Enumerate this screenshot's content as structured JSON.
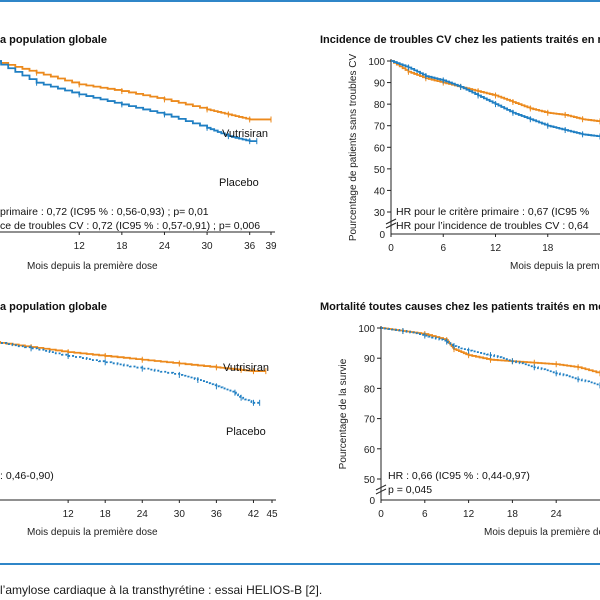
{
  "colors": {
    "vutrisiran": "#ec8a1d",
    "placebo": "#1f7fc3",
    "axis": "#222222",
    "rule": "#2f86c8"
  },
  "caption": "l’amylose cardiaque à la transthyrétine : essai HELIOS-B [2].",
  "chart_data": [
    {
      "type": "line",
      "title": "a population globale",
      "xlabel": "Mois depuis la première dose",
      "ylabel": "",
      "xlim": [
        0,
        39
      ],
      "ylim": [
        50,
        100
      ],
      "x_ticks": [
        "12",
        "18",
        "24",
        "30",
        "36",
        "39"
      ],
      "y_ticks": [],
      "annotations": [
        "primaire : 0,72 (IC95 % : 0,56-0,93) ; p= 0,01",
        "ce de troubles CV : 0,72 (IC95 % : 0,57-0,91) ; p= 0,006"
      ],
      "series": [
        {
          "name": "Vutrisiran",
          "x": [
            0,
            6,
            12,
            18,
            24,
            30,
            33,
            36,
            39
          ],
          "y": [
            100,
            96.5,
            93,
            91,
            88.5,
            85.5,
            84,
            82.5,
            82.5
          ]
        },
        {
          "name": "Placebo",
          "x": [
            0,
            6,
            12,
            18,
            24,
            30,
            33,
            36,
            37
          ],
          "y": [
            100,
            93.5,
            90,
            87,
            84,
            80,
            77.5,
            76,
            76
          ]
        }
      ]
    },
    {
      "type": "line",
      "title": "Incidence de troubles CV chez les patients traités en m",
      "xlabel": "Mois depuis la première dose",
      "ylabel": "Pourcentage de patients sans troubles CV",
      "xlim": [
        0,
        24
      ],
      "ylim": [
        0,
        100
      ],
      "x_ticks": [
        "0",
        "6",
        "12",
        "18"
      ],
      "y_ticks": [
        "30",
        "40",
        "50",
        "60",
        "70",
        "80",
        "90",
        "100"
      ],
      "annotations": [
        "HR pour le critère primaire : 0,67 (IC95 %",
        "HR pour l’incidence de troubles CV : 0,64"
      ],
      "series": [
        {
          "name": "",
          "x": [
            0,
            2,
            4,
            6,
            8,
            10,
            12,
            14,
            16,
            18,
            20,
            22,
            24
          ],
          "y": [
            100,
            95,
            92,
            90,
            88,
            86,
            84,
            81,
            78,
            76,
            75,
            73,
            72
          ]
        },
        {
          "name": "",
          "x": [
            0,
            2,
            4,
            6,
            8,
            10,
            12,
            14,
            16,
            18,
            20,
            22,
            24
          ],
          "y": [
            100,
            97,
            93,
            91,
            88,
            84,
            80,
            76,
            73,
            70,
            68,
            66,
            65
          ]
        }
      ]
    },
    {
      "type": "line",
      "title": "a population globale",
      "xlabel": "Mois depuis la première dose",
      "ylabel": "",
      "xlim": [
        0,
        45
      ],
      "ylim": [
        40,
        100
      ],
      "x_ticks": [
        "12",
        "18",
        "24",
        "30",
        "36",
        "42",
        "45"
      ],
      "y_ticks": [],
      "annotations": [
        ": 0,46-0,90)"
      ],
      "series": [
        {
          "name": "Vutrisiran",
          "x": [
            0,
            6,
            12,
            18,
            24,
            30,
            36,
            40,
            42,
            44
          ],
          "y": [
            100,
            98,
            96,
            94.5,
            93,
            91.5,
            90,
            89,
            88.5,
            88.5
          ]
        },
        {
          "name": "Placebo",
          "x": [
            0,
            6,
            12,
            18,
            24,
            30,
            33,
            36,
            39,
            40,
            42,
            43
          ],
          "y": [
            100,
            97.5,
            94.5,
            92,
            89.5,
            87,
            85,
            82.5,
            80,
            78,
            76,
            76
          ]
        }
      ]
    },
    {
      "type": "line",
      "title": "Mortalité toutes causes chez les patients traités en mo",
      "xlabel": "Mois depuis la première dose",
      "ylabel": "Pourcentage de la survie",
      "xlim": [
        0,
        30
      ],
      "ylim": [
        0,
        100
      ],
      "x_ticks": [
        "0",
        "6",
        "12",
        "18",
        "24"
      ],
      "y_ticks": [
        "50",
        "60",
        "70",
        "80",
        "90",
        "100"
      ],
      "annotations": [
        "HR : 0,66 (IC95 % : 0,44-0,97)",
        "p = 0,045"
      ],
      "series": [
        {
          "name": "",
          "x": [
            0,
            3,
            6,
            9,
            10,
            12,
            15,
            18,
            21,
            24,
            27,
            30
          ],
          "y": [
            100,
            99,
            98,
            96,
            93,
            91,
            89.5,
            89,
            88.5,
            88,
            87,
            85
          ]
        },
        {
          "name": "",
          "x": [
            0,
            3,
            6,
            9,
            10,
            12,
            15,
            18,
            21,
            24,
            27,
            30
          ],
          "y": [
            100,
            99,
            97.5,
            95.5,
            94,
            92.5,
            91,
            89,
            87,
            85,
            83,
            81
          ]
        }
      ]
    }
  ]
}
